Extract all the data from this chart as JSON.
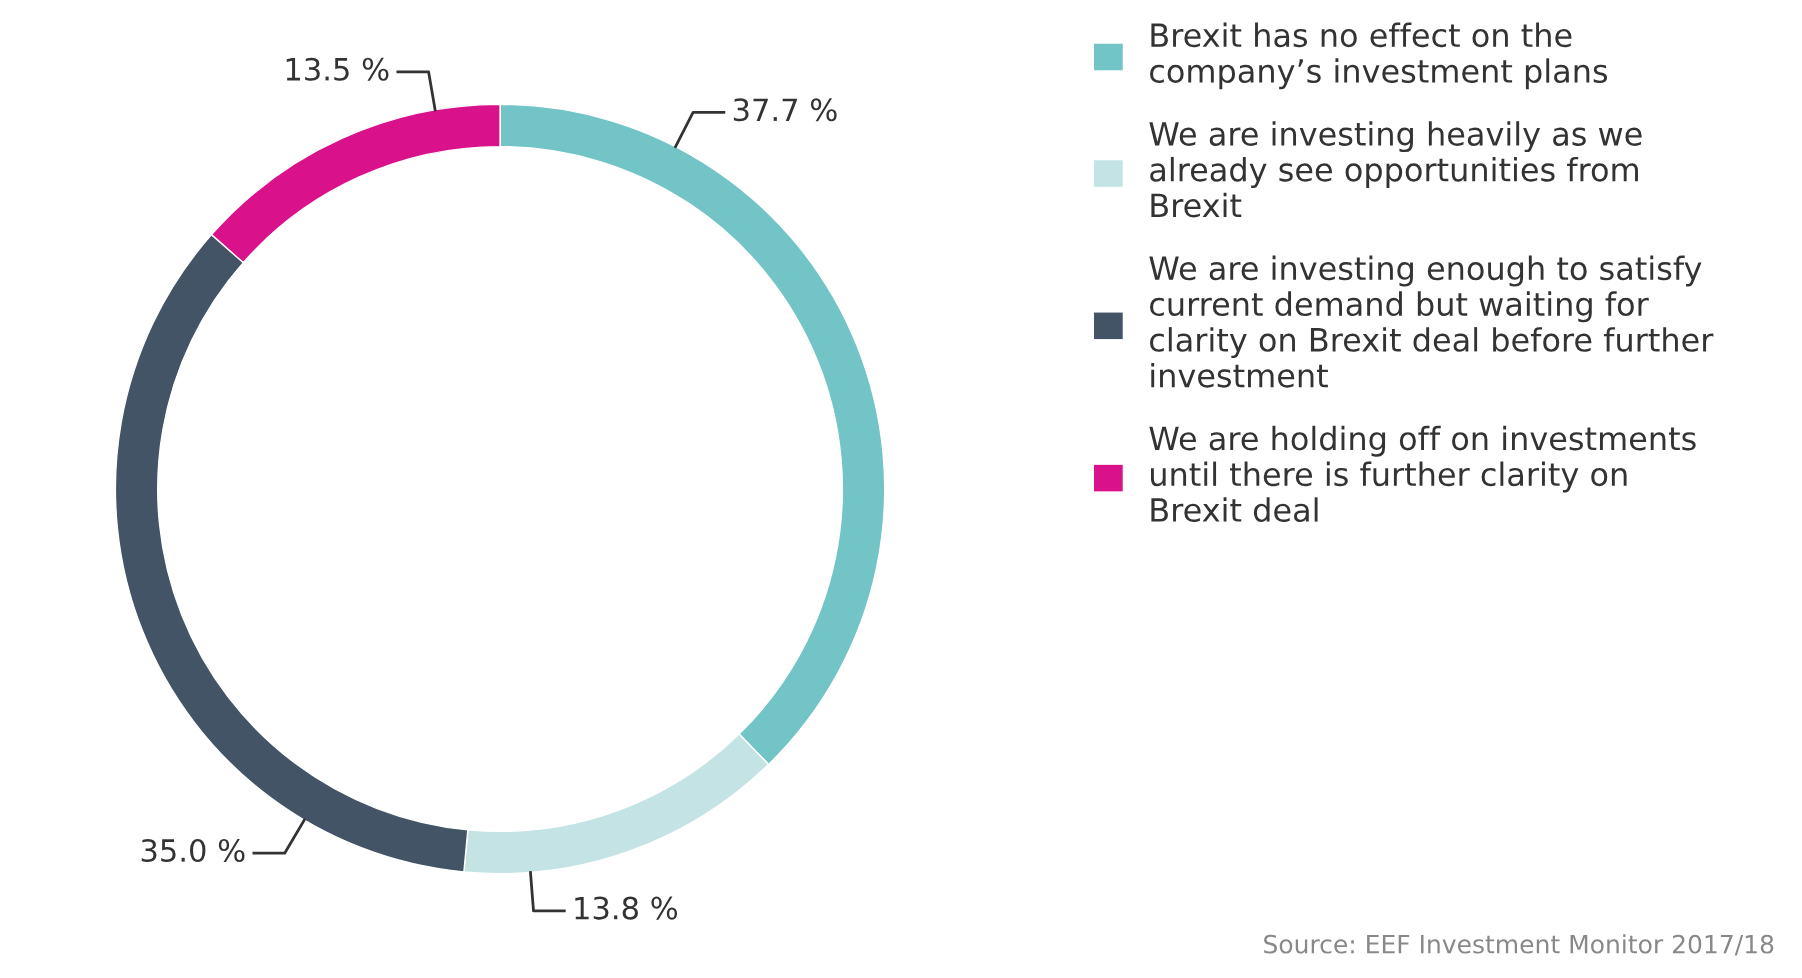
{
  "chart_data": {
    "type": "donut",
    "categories": [
      "Brexit has no effect on the\ncompany’s investment plans",
      "We are investing heavily as we\nalready see opportunities from\nBrexit",
      "We are investing enough to satisfy\ncurrent demand but waiting for\nclarity on Brexit deal before further\ninvestment",
      "We are holding off on investments\nuntil there is further clarity on\nBrexit deal"
    ],
    "values": [
      37.7,
      13.8,
      35.0,
      13.5
    ],
    "value_labels": [
      "37.7 %",
      "13.8 %",
      "35.0 %",
      "13.5 %"
    ],
    "colors": [
      "#72c4c6",
      "#c4e3e4",
      "#435466",
      "#d9128c"
    ],
    "legend": "right",
    "annotations": [
      "Source: EEF Investment Monitor 2017/18"
    ]
  }
}
